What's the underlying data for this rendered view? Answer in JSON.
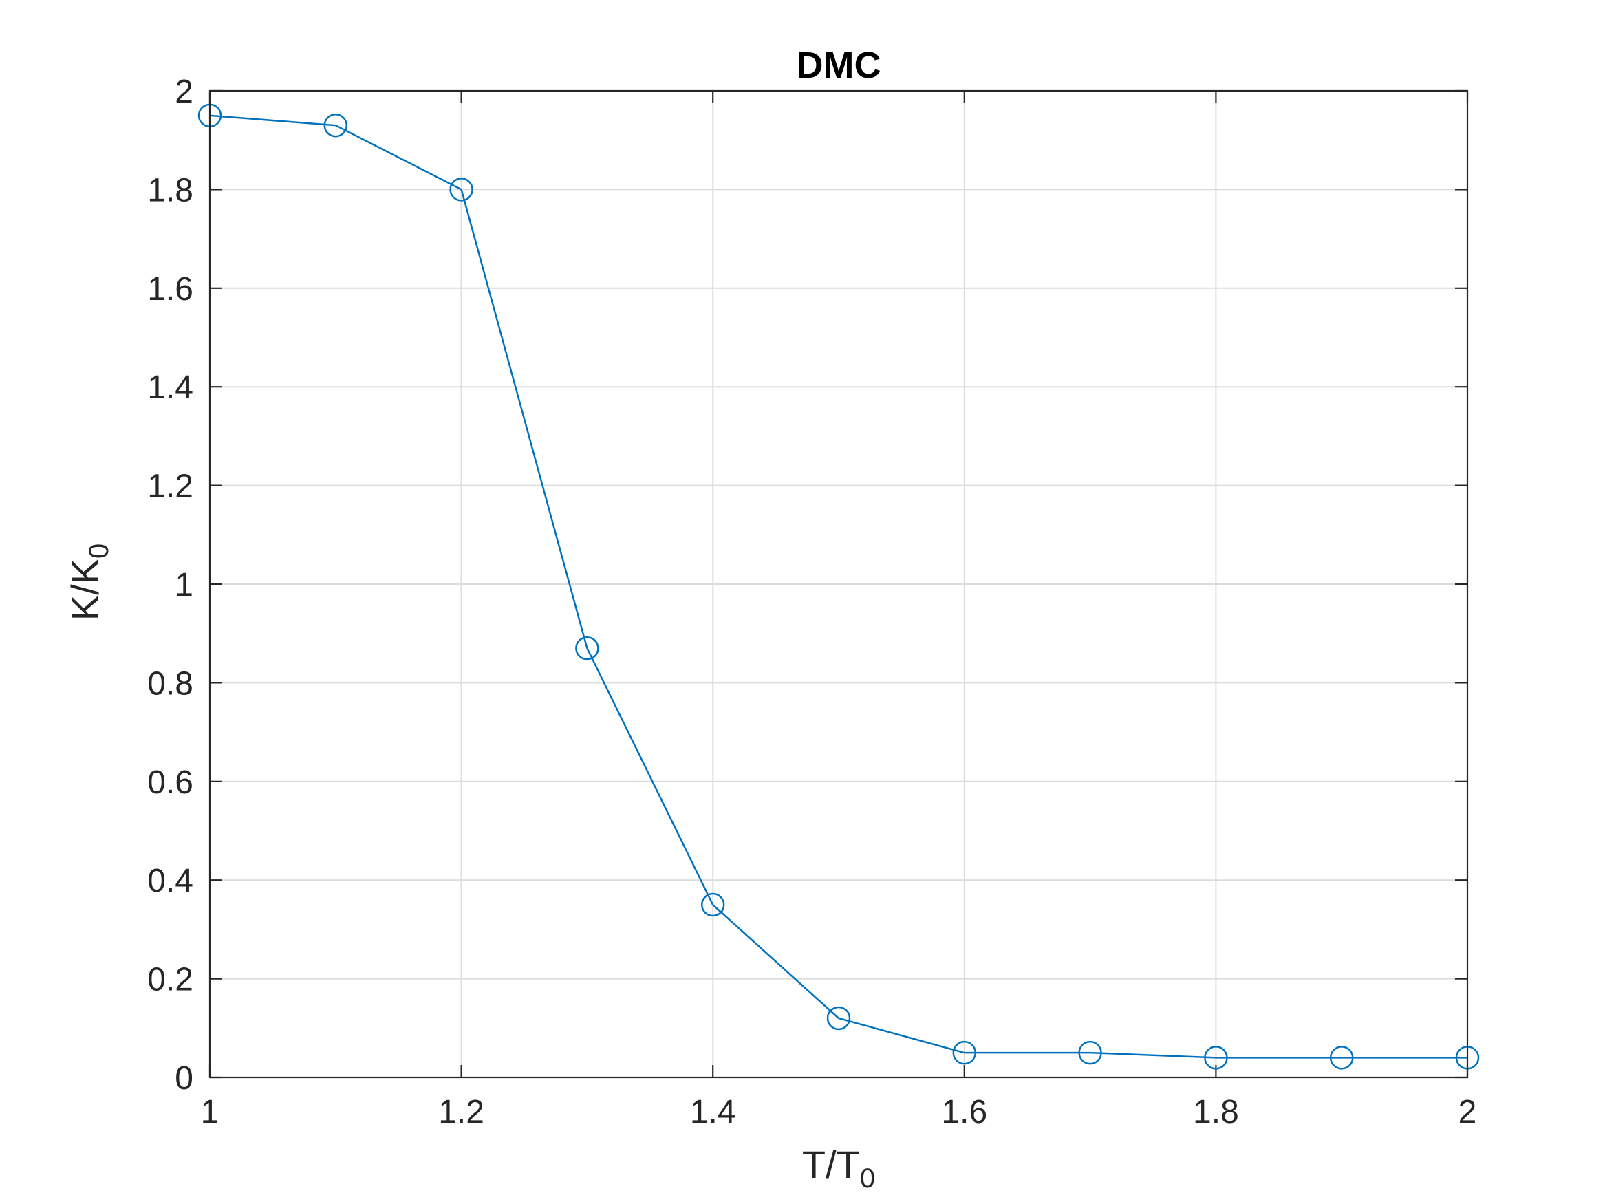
{
  "colors": {
    "series": "#0072BD",
    "grid": "#DCDCDC",
    "axis": "#262626",
    "background": "#FFFFFF"
  },
  "chart_data": {
    "type": "line",
    "title": "DMC",
    "xlabel": {
      "main": "T/T",
      "sub": "0"
    },
    "ylabel": {
      "main": "K/K",
      "sub": "0"
    },
    "xlim": [
      1,
      2
    ],
    "ylim": [
      0,
      2
    ],
    "xticks": [
      1,
      1.2,
      1.4,
      1.6,
      1.8,
      2
    ],
    "xtick_labels": [
      "1",
      "1.2",
      "1.4",
      "1.6",
      "1.8",
      "2"
    ],
    "yticks": [
      0,
      0.2,
      0.4,
      0.6,
      0.8,
      1,
      1.2,
      1.4,
      1.6,
      1.8,
      2
    ],
    "ytick_labels": [
      "0",
      "0.2",
      "0.4",
      "0.6",
      "0.8",
      "1",
      "1.2",
      "1.4",
      "1.6",
      "1.8",
      "2"
    ],
    "grid": true,
    "marker": "circle",
    "series": [
      {
        "x": [
          1.0,
          1.1,
          1.2,
          1.3,
          1.4,
          1.5,
          1.6,
          1.7,
          1.8,
          1.9,
          2.0
        ],
        "y": [
          1.95,
          1.93,
          1.8,
          0.87,
          0.35,
          0.12,
          0.05,
          0.05,
          0.04,
          0.04,
          0.04
        ]
      }
    ]
  }
}
